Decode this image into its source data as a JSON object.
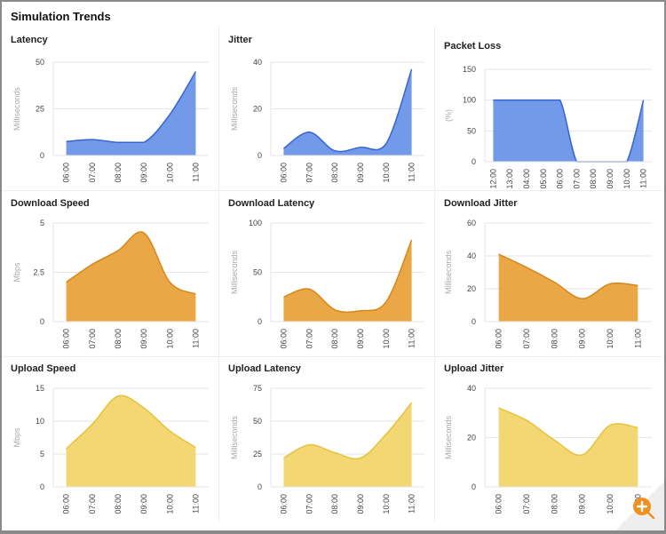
{
  "title": "Simulation Trends",
  "colors": {
    "blue_fill": "#6b93e8",
    "blue_line": "#3664d6",
    "orange_fill": "#e9a23b",
    "orange_line": "#d4881a",
    "yellow_fill": "#f1d56c",
    "yellow_line": "#e8c23e",
    "accent": "#f0901e"
  },
  "zoom_button": {
    "icon": "zoom-in-icon"
  },
  "charts": [
    {
      "title": "Latency",
      "type": "area",
      "ylabel": "Milliseconds",
      "ylim": [
        0,
        50
      ],
      "yticks": [
        "0",
        "25",
        "50"
      ],
      "categories": [
        "06:00",
        "07:00",
        "08:00",
        "09:00",
        "10:00",
        "11:00"
      ],
      "values": [
        7.5,
        8.5,
        7,
        7,
        22,
        45
      ],
      "color": "blue"
    },
    {
      "title": "Jitter",
      "type": "area",
      "ylabel": "Milliseconds",
      "ylim": [
        0,
        40
      ],
      "yticks": [
        "0",
        "20",
        "40"
      ],
      "categories": [
        "06:00",
        "07:00",
        "08:00",
        "09:00",
        "10:00",
        "11:00"
      ],
      "values": [
        3,
        10,
        2,
        3.5,
        5,
        37
      ],
      "color": "blue"
    },
    {
      "title": "Packet Loss",
      "type": "area",
      "ylabel": "(%)",
      "ylim": [
        0,
        150
      ],
      "yticks": [
        "0",
        "50",
        "100",
        "150"
      ],
      "categories": [
        "12:00",
        "13:00",
        "04:00",
        "05:00",
        "06:00",
        "07:00",
        "08:00",
        "09:00",
        "10:00",
        "11:00"
      ],
      "values": [
        100,
        100,
        100,
        100,
        100,
        0,
        0,
        0,
        0,
        100
      ],
      "color": "blue"
    },
    {
      "title": "Download Speed",
      "type": "area",
      "ylabel": "Mbps",
      "ylim": [
        0,
        5
      ],
      "yticks": [
        "0",
        "2.5",
        "5"
      ],
      "categories": [
        "06:00",
        "07:00",
        "08:00",
        "09:00",
        "10:00",
        "11:00"
      ],
      "values": [
        2,
        2.9,
        3.6,
        4.5,
        2,
        1.4
      ],
      "color": "orange"
    },
    {
      "title": "Download Latency",
      "type": "area",
      "ylabel": "Milliseconds",
      "ylim": [
        0,
        100
      ],
      "yticks": [
        "0",
        "50",
        "100"
      ],
      "categories": [
        "06:00",
        "07:00",
        "08:00",
        "09:00",
        "10:00",
        "11:00"
      ],
      "values": [
        25,
        33,
        12,
        11,
        20,
        83
      ],
      "color": "orange"
    },
    {
      "title": "Download Jitter",
      "type": "area",
      "ylabel": "Milliseconds",
      "ylim": [
        0,
        60
      ],
      "yticks": [
        "0",
        "20",
        "40",
        "60"
      ],
      "categories": [
        "06:00",
        "07:00",
        "08:00",
        "09:00",
        "10:00",
        "11:00"
      ],
      "values": [
        41,
        33,
        24,
        14,
        23,
        22
      ],
      "color": "orange"
    },
    {
      "title": "Upload Speed",
      "type": "area",
      "ylabel": "Mbps",
      "ylim": [
        0,
        15
      ],
      "yticks": [
        "0",
        "5",
        "10",
        "15"
      ],
      "categories": [
        "06:00",
        "07:00",
        "08:00",
        "09:00",
        "10:00",
        "11:00"
      ],
      "values": [
        5.8,
        9.5,
        13.8,
        12,
        8.5,
        6
      ],
      "color": "yellow"
    },
    {
      "title": "Upload Latency",
      "type": "area",
      "ylabel": "Milliseconds",
      "ylim": [
        0,
        75
      ],
      "yticks": [
        "0",
        "25",
        "50",
        "75"
      ],
      "categories": [
        "06:00",
        "07:00",
        "08:00",
        "09:00",
        "10:00",
        "11:00"
      ],
      "values": [
        22,
        32,
        26,
        22,
        40,
        64
      ],
      "color": "yellow"
    },
    {
      "title": "Upload Jitter",
      "type": "area",
      "ylabel": "Milliseconds",
      "ylim": [
        0,
        40
      ],
      "yticks": [
        "0",
        "20",
        "40"
      ],
      "categories": [
        "06:00",
        "07:00",
        "08:00",
        "09:00",
        "10:00",
        "11:00"
      ],
      "values": [
        32,
        27,
        19,
        13,
        25,
        24
      ],
      "color": "yellow"
    }
  ]
}
